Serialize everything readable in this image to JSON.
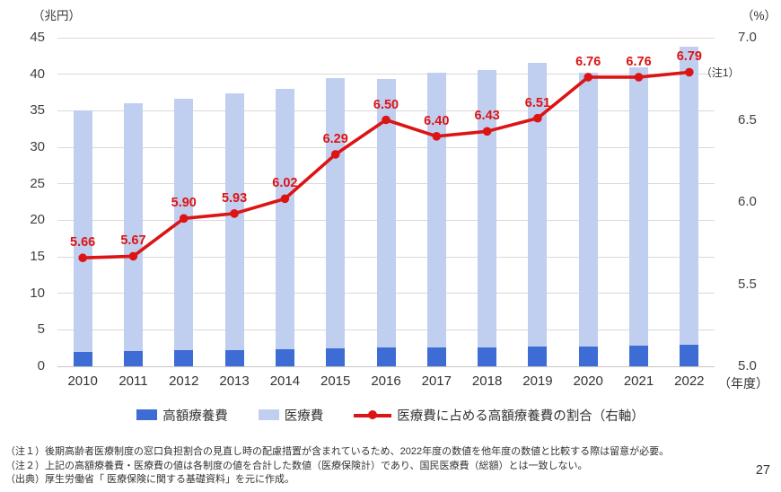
{
  "chart_data": {
    "type": "bar",
    "subtype": "stacked-bar-with-line-combo",
    "categories": [
      "2010",
      "2011",
      "2012",
      "2013",
      "2014",
      "2015",
      "2016",
      "2017",
      "2018",
      "2019",
      "2020",
      "2021",
      "2022"
    ],
    "category_axis_suffix": "（年度）",
    "left_axis": {
      "unit_label": "（兆円）",
      "min": 0,
      "max": 45,
      "tick_step": 5,
      "ticks": [
        "45",
        "40",
        "35",
        "30",
        "25",
        "20",
        "15",
        "10",
        "5",
        "0"
      ]
    },
    "right_axis": {
      "unit_label": "（%）",
      "min": 5.0,
      "max": 7.0,
      "tick_step": 0.5,
      "ticks": [
        "7.0",
        "6.5",
        "6.0",
        "5.5",
        "5.0"
      ]
    },
    "grid": true,
    "legend_position": "bottom",
    "series": [
      {
        "name": "高額療養費",
        "type": "bar",
        "axis": "left",
        "color": "#3d6cd5",
        "values": [
          1.98,
          2.04,
          2.16,
          2.22,
          2.29,
          2.48,
          2.56,
          2.57,
          2.61,
          2.7,
          2.72,
          2.77,
          2.97
        ]
      },
      {
        "name": "医療費",
        "type": "bar",
        "axis": "left",
        "color": "#c0cff0",
        "values": [
          35.0,
          36.0,
          36.6,
          37.4,
          38.0,
          39.5,
          39.3,
          40.2,
          40.6,
          41.5,
          40.2,
          41.0,
          43.8
        ]
      },
      {
        "name": "医療費に占める高額療養費の割合（右軸）",
        "type": "line",
        "axis": "right",
        "color": "#dc1414",
        "values": [
          5.66,
          5.67,
          5.9,
          5.93,
          6.02,
          6.29,
          6.5,
          6.4,
          6.43,
          6.51,
          6.76,
          6.76,
          6.79
        ],
        "point_labels": [
          "5.66",
          "5.67",
          "5.90",
          "5.93",
          "6.02",
          "6.29",
          "6.50",
          "6.40",
          "6.43",
          "6.51",
          "6.76",
          "6.76",
          "6.79"
        ]
      }
    ],
    "last_point_annotation": "（注1）"
  },
  "notes": {
    "line1": "（注１）後期高齢者医療制度の窓口負担割合の見直し時の配慮措置が含まれているため、2022年度の数値を他年度の数値と比較する際は留意が必要。",
    "line2": "（注２）上記の高額療養費・医療費の値は各制度の値を合計した数値（医療保険計）であり、国民医療費（総額）とは一致しない。",
    "line3": "（出典）厚生労働省「 医療保険に関する基礎資料」を元に作成。"
  },
  "page": {
    "number": "27"
  }
}
